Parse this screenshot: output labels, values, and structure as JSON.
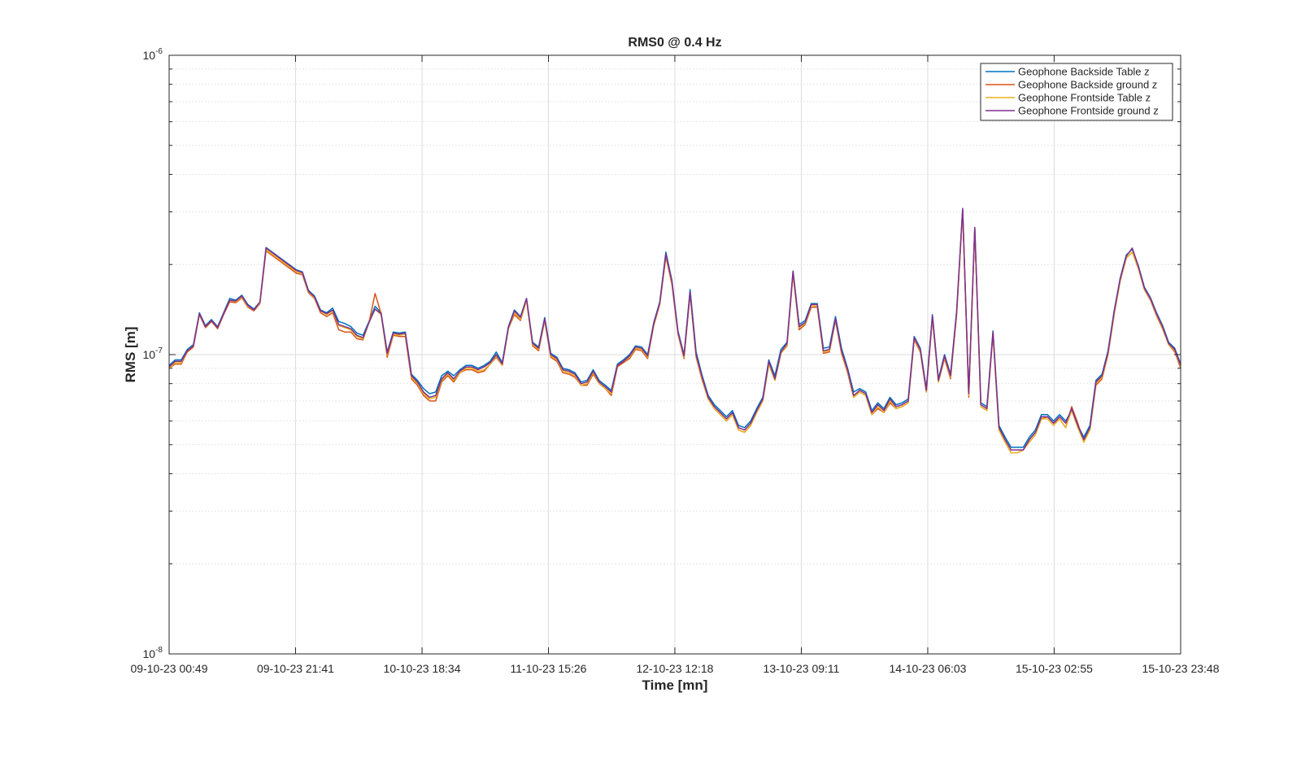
{
  "chart_data": {
    "type": "line",
    "title": "RMS0 @ 0.4 Hz",
    "xlabel": "Time [mn]",
    "ylabel": "RMS [m]",
    "yscale": "log",
    "ylim": [
      1e-08,
      1e-06
    ],
    "y_ticks": [
      {
        "base": "10",
        "exp": "-8",
        "value": 1e-08
      },
      {
        "base": "10",
        "exp": "-7",
        "value": 1e-07
      },
      {
        "base": "10",
        "exp": "-6",
        "value": 1e-06
      }
    ],
    "x_tick_labels": [
      "09-10-23 00:49",
      "09-10-23 21:41",
      "10-10-23 18:34",
      "11-10-23 15:26",
      "12-10-23 12:18",
      "13-10-23 09:11",
      "14-10-23 06:03",
      "15-10-23 02:55",
      "15-10-23 23:48"
    ],
    "xlim": [
      "09-10-23 00:49",
      "15-10-23 23:48"
    ],
    "grid": true,
    "legend_position": "top-right",
    "x": [
      "2023-10-09 00:49",
      "2023-10-09 01:49",
      "2023-10-09 02:49",
      "2023-10-09 03:49",
      "2023-10-09 04:49",
      "2023-10-09 05:49",
      "2023-10-09 06:49",
      "2023-10-09 07:49",
      "2023-10-09 08:49",
      "2023-10-09 09:49",
      "2023-10-09 10:49",
      "2023-10-09 11:49",
      "2023-10-09 12:49",
      "2023-10-09 13:49",
      "2023-10-09 14:49",
      "2023-10-09 15:49",
      "2023-10-09 16:49",
      "2023-10-09 21:49",
      "2023-10-09 22:49",
      "2023-10-09 23:49",
      "2023-10-10 00:49",
      "2023-10-10 01:49",
      "2023-10-10 02:49",
      "2023-10-10 03:49",
      "2023-10-10 04:49",
      "2023-10-10 05:49",
      "2023-10-10 06:49",
      "2023-10-10 07:49",
      "2023-10-10 08:49",
      "2023-10-10 09:49",
      "2023-10-10 10:49",
      "2023-10-10 11:49",
      "2023-10-10 12:49",
      "2023-10-10 13:49",
      "2023-10-10 14:49",
      "2023-10-10 15:49",
      "2023-10-10 16:49",
      "2023-10-10 17:49",
      "2023-10-10 18:49",
      "2023-10-10 19:49",
      "2023-10-10 20:49",
      "2023-10-10 21:49",
      "2023-10-10 22:49",
      "2023-10-10 23:49",
      "2023-10-11 00:49",
      "2023-10-11 01:49",
      "2023-10-11 02:49",
      "2023-10-11 03:49",
      "2023-10-11 04:49",
      "2023-10-11 05:49",
      "2023-10-11 06:49",
      "2023-10-11 07:49",
      "2023-10-11 08:49",
      "2023-10-11 09:49",
      "2023-10-11 10:49",
      "2023-10-11 11:49",
      "2023-10-11 12:49",
      "2023-10-11 13:49",
      "2023-10-11 14:49",
      "2023-10-11 15:49",
      "2023-10-11 16:49",
      "2023-10-11 17:49",
      "2023-10-11 18:49",
      "2023-10-11 19:49",
      "2023-10-11 20:49",
      "2023-10-11 21:49",
      "2023-10-11 22:49",
      "2023-10-11 23:49",
      "2023-10-12 00:49",
      "2023-10-12 01:49",
      "2023-10-12 02:49",
      "2023-10-12 03:49",
      "2023-10-12 04:49",
      "2023-10-12 05:49",
      "2023-10-12 06:49",
      "2023-10-12 07:49",
      "2023-10-12 08:49",
      "2023-10-12 09:49",
      "2023-10-12 10:49",
      "2023-10-12 11:49",
      "2023-10-12 12:49",
      "2023-10-12 13:49",
      "2023-10-12 14:49",
      "2023-10-12 15:49",
      "2023-10-12 16:49",
      "2023-10-12 17:49",
      "2023-10-12 18:49",
      "2023-10-12 19:49",
      "2023-10-12 20:49",
      "2023-10-12 21:49",
      "2023-10-12 22:49",
      "2023-10-12 23:49",
      "2023-10-13 00:49",
      "2023-10-13 01:49",
      "2023-10-13 02:49",
      "2023-10-13 03:49",
      "2023-10-13 04:49",
      "2023-10-13 05:49",
      "2023-10-13 06:49",
      "2023-10-13 07:49",
      "2023-10-13 08:49",
      "2023-10-13 09:49",
      "2023-10-13 10:49",
      "2023-10-13 11:49",
      "2023-10-13 12:49",
      "2023-10-13 13:49",
      "2023-10-13 14:49",
      "2023-10-13 15:49",
      "2023-10-13 16:49",
      "2023-10-13 17:49",
      "2023-10-13 18:49",
      "2023-10-13 19:49",
      "2023-10-13 20:49",
      "2023-10-13 21:49",
      "2023-10-13 22:49",
      "2023-10-13 23:49",
      "2023-10-14 00:49",
      "2023-10-14 01:49",
      "2023-10-14 02:49",
      "2023-10-14 03:49",
      "2023-10-14 04:49",
      "2023-10-14 05:49",
      "2023-10-14 06:49",
      "2023-10-14 07:49",
      "2023-10-14 08:49",
      "2023-10-14 09:49",
      "2023-10-14 10:49",
      "2023-10-14 11:49",
      "2023-10-14 12:49",
      "2023-10-14 13:49",
      "2023-10-14 14:49",
      "2023-10-14 15:49",
      "2023-10-14 16:49",
      "2023-10-14 17:49",
      "2023-10-14 18:49",
      "2023-10-14 19:49",
      "2023-10-14 20:49",
      "2023-10-14 21:49",
      "2023-10-14 22:49",
      "2023-10-14 23:49",
      "2023-10-15 00:49",
      "2023-10-15 01:49",
      "2023-10-15 02:49",
      "2023-10-15 03:49",
      "2023-10-15 04:49",
      "2023-10-15 05:49",
      "2023-10-15 06:49",
      "2023-10-15 07:49",
      "2023-10-15 08:49",
      "2023-10-15 09:49",
      "2023-10-15 10:49",
      "2023-10-15 11:49",
      "2023-10-15 12:49",
      "2023-10-15 13:49",
      "2023-10-15 14:49",
      "2023-10-15 15:49",
      "2023-10-15 16:49",
      "2023-10-15 17:49",
      "2023-10-15 18:49",
      "2023-10-15 19:49",
      "2023-10-15 20:49",
      "2023-10-15 21:49",
      "2023-10-15 22:49",
      "2023-10-15 23:48"
    ],
    "series": [
      {
        "name": "Geophone Backside Table z",
        "color": "#0072BD",
        "values": [
          9.2e-08,
          9.6e-08,
          9.6e-08,
          1.04e-07,
          1.08e-07,
          1.38e-07,
          1.25e-07,
          1.31e-07,
          1.24e-07,
          1.38e-07,
          1.54e-07,
          1.52e-07,
          1.58e-07,
          1.47e-07,
          1.42e-07,
          1.5e-07,
          2.28e-07,
          1.92e-07,
          1.89e-07,
          1.64e-07,
          1.57e-07,
          1.41e-07,
          1.38e-07,
          1.43e-07,
          1.29e-07,
          1.27e-07,
          1.24e-07,
          1.18e-07,
          1.16e-07,
          1.29e-07,
          1.45e-07,
          1.38e-07,
          1.02e-07,
          1.19e-07,
          1.18e-07,
          1.19e-07,
          8.6e-08,
          8.2e-08,
          7.7e-08,
          7.4e-08,
          7.5e-08,
          8.5e-08,
          8.8e-08,
          8.5e-08,
          8.9e-08,
          9.2e-08,
          9.2e-08,
          9e-08,
          9.2e-08,
          9.5e-08,
          1.02e-07,
          9.4e-08,
          1.24e-07,
          1.41e-07,
          1.34e-07,
          1.54e-07,
          1.1e-07,
          1.06e-07,
          1.33e-07,
          1.01e-07,
          9.8e-08,
          9e-08,
          8.9e-08,
          8.7e-08,
          8.1e-08,
          8.2e-08,
          8.9e-08,
          8.2e-08,
          7.9e-08,
          7.6e-08,
          9.3e-08,
          9.6e-08,
          1e-07,
          1.07e-07,
          1.06e-07,
          1e-07,
          1.28e-07,
          1.5e-07,
          2.2e-07,
          1.77e-07,
          1.2e-07,
          1e-07,
          1.65e-07,
          1.02e-07,
          8.5e-08,
          7.3e-08,
          6.8e-08,
          6.5e-08,
          6.2e-08,
          6.5e-08,
          5.8e-08,
          5.7e-08,
          6e-08,
          6.6e-08,
          7.2e-08,
          9.6e-08,
          8.5e-08,
          1.04e-07,
          1.1e-07,
          1.9e-07,
          1.26e-07,
          1.3e-07,
          1.48e-07,
          1.48e-07,
          1.05e-07,
          1.06e-07,
          1.34e-07,
          1.05e-07,
          9e-08,
          7.5e-08,
          7.7e-08,
          7.5e-08,
          6.5e-08,
          6.9e-08,
          6.6e-08,
          7.2e-08,
          6.8e-08,
          6.9e-08,
          7.1e-08,
          1.15e-07,
          1.05e-07,
          7.7e-08,
          1.36e-07,
          8.3e-08,
          1e-07,
          8.6e-08,
          1.4e-07,
          3.05e-07,
          7.4e-08,
          2.65e-07,
          6.9e-08,
          6.7e-08,
          1.2e-07,
          5.8e-08,
          5.3e-08,
          4.9e-08,
          4.9e-08,
          4.9e-08,
          5.3e-08,
          5.6e-08,
          6.3e-08,
          6.3e-08,
          6e-08,
          6.3e-08,
          6e-08,
          6.5e-08,
          5.8e-08,
          5.3e-08,
          5.8e-08,
          8.2e-08,
          8.6e-08,
          1.03e-07,
          1.4e-07,
          1.8e-07,
          2.15e-07,
          2.25e-07,
          1.98e-07,
          1.68e-07,
          1.55e-07,
          1.38e-07,
          1.25e-07,
          1.1e-07,
          1.05e-07,
          9.3e-08
        ]
      },
      {
        "name": "Geophone Backside ground z",
        "color": "#D95319",
        "values": [
          9e-08,
          9.3e-08,
          9.3e-08,
          1.02e-07,
          1.06e-07,
          1.36e-07,
          1.23e-07,
          1.29e-07,
          1.22e-07,
          1.36e-07,
          1.5e-07,
          1.49e-07,
          1.55e-07,
          1.44e-07,
          1.4e-07,
          1.48e-07,
          2.22e-07,
          1.87e-07,
          1.85e-07,
          1.61e-07,
          1.54e-07,
          1.38e-07,
          1.34e-07,
          1.38e-07,
          1.21e-07,
          1.19e-07,
          1.19e-07,
          1.13e-07,
          1.12e-07,
          1.28e-07,
          1.6e-07,
          1.37e-07,
          9.8e-08,
          1.16e-07,
          1.15e-07,
          1.15e-07,
          8.3e-08,
          7.9e-08,
          7.3e-08,
          7e-08,
          7e-08,
          8.1e-08,
          8.5e-08,
          8.1e-08,
          8.7e-08,
          8.9e-08,
          8.9e-08,
          8.7e-08,
          8.8e-08,
          9.3e-08,
          9.8e-08,
          9.2e-08,
          1.22e-07,
          1.36e-07,
          1.3e-07,
          1.52e-07,
          1.07e-07,
          1.03e-07,
          1.3e-07,
          9.8e-08,
          9.5e-08,
          8.7e-08,
          8.6e-08,
          8.4e-08,
          7.9e-08,
          7.9e-08,
          8.6e-08,
          8e-08,
          7.7e-08,
          7.3e-08,
          9.1e-08,
          9.4e-08,
          9.7e-08,
          1.04e-07,
          1.03e-07,
          9.7e-08,
          1.25e-07,
          1.47e-07,
          2.12e-07,
          1.72e-07,
          1.17e-07,
          9.7e-08,
          1.59e-07,
          9.8e-08,
          8.2e-08,
          7.1e-08,
          6.6e-08,
          6.3e-08,
          6e-08,
          6.3e-08,
          5.6e-08,
          5.5e-08,
          5.8e-08,
          6.4e-08,
          7e-08,
          9.3e-08,
          8.2e-08,
          1.01e-07,
          1.07e-07,
          1.86e-07,
          1.21e-07,
          1.26e-07,
          1.44e-07,
          1.44e-07,
          1.01e-07,
          1.02e-07,
          1.3e-07,
          1.01e-07,
          8.7e-08,
          7.2e-08,
          7.5e-08,
          7.3e-08,
          6.3e-08,
          6.6e-08,
          6.4e-08,
          6.9e-08,
          6.6e-08,
          6.7e-08,
          6.9e-08,
          1.12e-07,
          1.02e-07,
          7.5e-08,
          1.32e-07,
          8.1e-08,
          9.7e-08,
          8.3e-08,
          1.36e-07,
          3e-07,
          7.2e-08,
          2.6e-07,
          6.7e-08,
          6.5e-08,
          1.17e-07,
          5.6e-08,
          5.1e-08,
          4.7e-08,
          4.7e-08,
          4.8e-08,
          5.1e-08,
          5.4e-08,
          6.1e-08,
          6.2e-08,
          5.9e-08,
          6.1e-08,
          5.7e-08,
          6.7e-08,
          5.9e-08,
          5.1e-08,
          5.6e-08,
          7.9e-08,
          8.3e-08,
          1e-07,
          1.36e-07,
          1.76e-07,
          2.1e-07,
          2.2e-07,
          1.94e-07,
          1.65e-07,
          1.52e-07,
          1.35e-07,
          1.22e-07,
          1.08e-07,
          1.02e-07,
          9e-08
        ]
      },
      {
        "name": "Geophone Frontside Table z",
        "color": "#EDB120",
        "values": [
          9e-08,
          9.4e-08,
          9.4e-08,
          1.03e-07,
          1.07e-07,
          1.37e-07,
          1.24e-07,
          1.3e-07,
          1.23e-07,
          1.37e-07,
          1.52e-07,
          1.5e-07,
          1.56e-07,
          1.45e-07,
          1.41e-07,
          1.49e-07,
          2.24e-07,
          1.89e-07,
          1.87e-07,
          1.62e-07,
          1.55e-07,
          1.4e-07,
          1.36e-07,
          1.4e-07,
          1.25e-07,
          1.23e-07,
          1.21e-07,
          1.15e-07,
          1.13e-07,
          1.28e-07,
          1.42e-07,
          1.36e-07,
          1e-07,
          1.17e-07,
          1.16e-07,
          1.17e-07,
          8.4e-08,
          8e-08,
          7.4e-08,
          7.1e-08,
          7.2e-08,
          8.2e-08,
          8.6e-08,
          8.2e-08,
          8.7e-08,
          9e-08,
          9e-08,
          8.8e-08,
          8.9e-08,
          9.3e-08,
          9.9e-08,
          9.2e-08,
          1.22e-07,
          1.38e-07,
          1.31e-07,
          1.52e-07,
          1.08e-07,
          1.04e-07,
          1.31e-07,
          9.9e-08,
          9.6e-08,
          8.8e-08,
          8.7e-08,
          8.5e-08,
          7.9e-08,
          8e-08,
          8.7e-08,
          8e-08,
          7.7e-08,
          7.4e-08,
          9.2e-08,
          9.5e-08,
          9.8e-08,
          1.05e-07,
          1.04e-07,
          9.8e-08,
          1.26e-07,
          1.48e-07,
          2.15e-07,
          1.74e-07,
          1.18e-07,
          9.8e-08,
          1.61e-07,
          9.9e-08,
          8.3e-08,
          7.1e-08,
          6.6e-08,
          6.3e-08,
          6e-08,
          6.3e-08,
          5.6e-08,
          5.5e-08,
          5.8e-08,
          6.4e-08,
          7e-08,
          9.3e-08,
          8.2e-08,
          1.01e-07,
          1.08e-07,
          1.88e-07,
          1.23e-07,
          1.27e-07,
          1.46e-07,
          1.45e-07,
          1.02e-07,
          1.03e-07,
          1.31e-07,
          1.02e-07,
          8.8e-08,
          7.2e-08,
          7.5e-08,
          7.3e-08,
          6.3e-08,
          6.7e-08,
          6.4e-08,
          7e-08,
          6.6e-08,
          6.7e-08,
          6.9e-08,
          1.13e-07,
          1.03e-07,
          7.5e-08,
          1.33e-07,
          8.1e-08,
          9.8e-08,
          8.4e-08,
          1.37e-07,
          3.02e-07,
          7.3e-08,
          2.62e-07,
          6.7e-08,
          6.5e-08,
          1.18e-07,
          5.6e-08,
          5.1e-08,
          4.7e-08,
          4.7e-08,
          4.8e-08,
          5.1e-08,
          5.4e-08,
          6.1e-08,
          6.1e-08,
          5.8e-08,
          6.1e-08,
          5.7e-08,
          6.5e-08,
          5.7e-08,
          5.1e-08,
          5.6e-08,
          8e-08,
          8.4e-08,
          1.01e-07,
          1.37e-07,
          1.77e-07,
          2.1e-07,
          2.2e-07,
          1.95e-07,
          1.66e-07,
          1.53e-07,
          1.36e-07,
          1.23e-07,
          1.08e-07,
          1.03e-07,
          9.1e-08
        ]
      },
      {
        "name": "Geophone Frontside ground z",
        "color": "#7E2F8E",
        "values": [
          9.1e-08,
          9.5e-08,
          9.5e-08,
          1.03e-07,
          1.07e-07,
          1.37e-07,
          1.24e-07,
          1.3e-07,
          1.23e-07,
          1.37e-07,
          1.52e-07,
          1.51e-07,
          1.57e-07,
          1.46e-07,
          1.41e-07,
          1.5e-07,
          2.27e-07,
          1.91e-07,
          1.88e-07,
          1.63e-07,
          1.56e-07,
          1.4e-07,
          1.37e-07,
          1.41e-07,
          1.26e-07,
          1.24e-07,
          1.22e-07,
          1.16e-07,
          1.14e-07,
          1.28e-07,
          1.42e-07,
          1.37e-07,
          1.01e-07,
          1.18e-07,
          1.17e-07,
          1.18e-07,
          8.5e-08,
          8.1e-08,
          7.5e-08,
          7.2e-08,
          7.3e-08,
          8.3e-08,
          8.7e-08,
          8.3e-08,
          8.8e-08,
          9.1e-08,
          9.1e-08,
          8.9e-08,
          9.1e-08,
          9.4e-08,
          1e-07,
          9.3e-08,
          1.23e-07,
          1.4e-07,
          1.33e-07,
          1.54e-07,
          1.09e-07,
          1.05e-07,
          1.32e-07,
          1e-07,
          9.7e-08,
          8.9e-08,
          8.8e-08,
          8.6e-08,
          8e-08,
          8.1e-08,
          8.8e-08,
          8.1e-08,
          7.8e-08,
          7.5e-08,
          9.2e-08,
          9.5e-08,
          9.9e-08,
          1.06e-07,
          1.05e-07,
          9.9e-08,
          1.27e-07,
          1.49e-07,
          2.17e-07,
          1.76e-07,
          1.19e-07,
          9.9e-08,
          1.62e-07,
          1e-07,
          8.4e-08,
          7.2e-08,
          6.7e-08,
          6.4e-08,
          6.1e-08,
          6.4e-08,
          5.7e-08,
          5.6e-08,
          5.9e-08,
          6.5e-08,
          7.1e-08,
          9.5e-08,
          8.3e-08,
          1.02e-07,
          1.09e-07,
          1.9e-07,
          1.24e-07,
          1.28e-07,
          1.47e-07,
          1.47e-07,
          1.03e-07,
          1.04e-07,
          1.32e-07,
          1.03e-07,
          8.9e-08,
          7.3e-08,
          7.6e-08,
          7.4e-08,
          6.4e-08,
          6.8e-08,
          6.5e-08,
          7.1e-08,
          6.7e-08,
          6.8e-08,
          7e-08,
          1.14e-07,
          1.04e-07,
          7.6e-08,
          1.35e-07,
          8.2e-08,
          9.9e-08,
          8.5e-08,
          1.39e-07,
          3.08e-07,
          7.4e-08,
          2.66e-07,
          6.8e-08,
          6.6e-08,
          1.19e-07,
          5.7e-08,
          5.2e-08,
          4.8e-08,
          4.8e-08,
          4.8e-08,
          5.2e-08,
          5.5e-08,
          6.2e-08,
          6.2e-08,
          5.9e-08,
          6.2e-08,
          5.9e-08,
          6.6e-08,
          5.8e-08,
          5.2e-08,
          5.7e-08,
          8.1e-08,
          8.5e-08,
          1.02e-07,
          1.39e-07,
          1.79e-07,
          2.13e-07,
          2.27e-07,
          1.97e-07,
          1.67e-07,
          1.54e-07,
          1.37e-07,
          1.24e-07,
          1.09e-07,
          1.04e-07,
          9.2e-08
        ]
      }
    ]
  }
}
